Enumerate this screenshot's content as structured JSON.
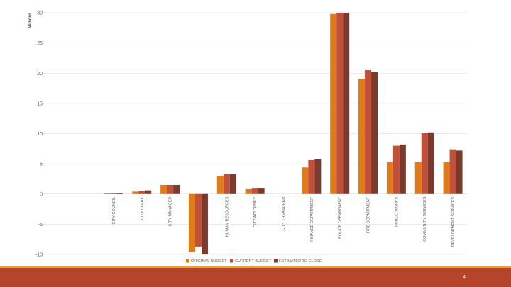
{
  "chart_data": {
    "type": "bar",
    "ylabel": "Millions",
    "ylim": [
      -10,
      30
    ],
    "yticks": [
      -10,
      -5,
      0,
      5,
      10,
      15,
      20,
      25,
      30
    ],
    "grid": true,
    "legend_position": "bottom",
    "categories": [
      "CITY COUNCIL",
      "CITY CLERK",
      "CITY MANAGER",
      "",
      "HUMAN RESOURCES",
      "CITY ATTORNEY",
      "CITY TREASURER",
      "FINANCE DEPARTMENT",
      "POLICE DEPARTMENT",
      "FIRE DEPARTMENT",
      "PUBLIC WORKS",
      "COMMUNITY SERVICES",
      "DEVELOPMENT SERVICES"
    ],
    "series": [
      {
        "name": "ORIGINAL BUDGET",
        "color": "#e07b1a",
        "values": [
          0.1,
          0.4,
          1.5,
          -9.6,
          3.0,
          0.8,
          0.0,
          4.4,
          29.8,
          19.1,
          5.3,
          5.3,
          5.3
        ]
      },
      {
        "name": "CURRENT BUDGET",
        "color": "#c0503a",
        "values": [
          0.1,
          0.5,
          1.5,
          -8.7,
          3.3,
          0.9,
          0.0,
          5.6,
          30.0,
          20.5,
          8.0,
          10.1,
          7.4
        ]
      },
      {
        "name": "ESTIMATED TO CLOSE",
        "color": "#7a3b2e",
        "values": [
          0.2,
          0.6,
          1.5,
          -10.0,
          3.3,
          0.9,
          0.0,
          5.8,
          30.0,
          20.2,
          8.2,
          10.2,
          7.2
        ]
      }
    ]
  },
  "footer": {
    "page_number": "4"
  }
}
